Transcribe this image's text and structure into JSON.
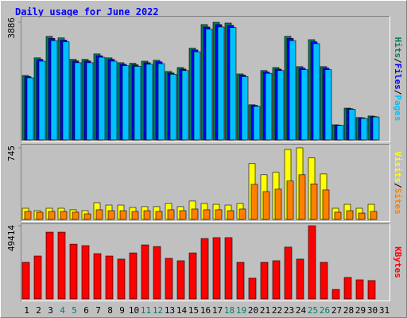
{
  "chart_data": [
    {
      "type": "bar",
      "title": "Daily usage for June 2022",
      "ylim": [
        0,
        3886
      ],
      "yticks": [
        3886
      ],
      "legend_separator": "/",
      "series": [
        {
          "name": "Hits",
          "color": "#00805c",
          "values": [
            2130,
            2710,
            3420,
            3370,
            2660,
            2660,
            2840,
            2710,
            2550,
            2530,
            2600,
            2630,
            2260,
            2390,
            3030,
            3810,
            3886,
            3860,
            2180,
            1160,
            2290,
            2390,
            3420,
            2420,
            3310,
            2420,
            500,
            1050,
            740,
            790,
            null
          ]
        },
        {
          "name": "Files",
          "color": "#0000ff",
          "values": [
            2090,
            2660,
            3350,
            3300,
            2610,
            2610,
            2780,
            2660,
            2500,
            2480,
            2550,
            2580,
            2210,
            2340,
            2970,
            3730,
            3810,
            3780,
            2140,
            1140,
            2240,
            2340,
            3350,
            2370,
            3240,
            2370,
            490,
            1030,
            730,
            770,
            null
          ]
        },
        {
          "name": "Pages",
          "color": "#00c0ff",
          "values": [
            2050,
            2600,
            3280,
            3240,
            2550,
            2550,
            2730,
            2600,
            2450,
            2430,
            2500,
            2520,
            2170,
            2290,
            2910,
            3660,
            3730,
            3710,
            2090,
            1110,
            2200,
            2290,
            3280,
            2320,
            3180,
            2320,
            480,
            1010,
            710,
            760,
            null
          ]
        }
      ]
    },
    {
      "type": "bar",
      "ylim": [
        0,
        745
      ],
      "yticks": [
        745
      ],
      "legend_separator": "/",
      "series": [
        {
          "name": "Visits",
          "color": "#ffff00",
          "values": [
            116,
            91,
            116,
            116,
            100,
            91,
            174,
            149,
            149,
            124,
            133,
            133,
            166,
            133,
            191,
            166,
            157,
            149,
            166,
            581,
            465,
            490,
            728,
            745,
            640,
            473,
            116,
            157,
            116,
            157,
            null
          ]
        },
        {
          "name": "Sites",
          "color": "#ff8000",
          "values": [
            83,
            75,
            83,
            83,
            75,
            58,
            100,
            91,
            91,
            83,
            91,
            83,
            100,
            91,
            108,
            100,
            100,
            91,
            108,
            365,
            290,
            315,
            400,
            465,
            370,
            307,
            75,
            91,
            66,
            83,
            null
          ]
        }
      ]
    },
    {
      "type": "bar",
      "ylim": [
        0,
        49414
      ],
      "yticks": [
        49414
      ],
      "series": [
        {
          "name": "KBytes",
          "color": "#ff0000",
          "values": [
            24700,
            29000,
            45100,
            45100,
            37000,
            36000,
            30600,
            29000,
            26900,
            31100,
            36500,
            35400,
            27400,
            25800,
            31100,
            40800,
            41400,
            41400,
            24700,
            14000,
            24700,
            25800,
            35000,
            26900,
            49414,
            24700,
            6400,
            14500,
            12900,
            12400,
            null
          ]
        }
      ],
      "categories": [
        "1",
        "2",
        "3",
        "4",
        "5",
        "6",
        "7",
        "8",
        "9",
        "10",
        "11",
        "12",
        "13",
        "14",
        "15",
        "16",
        "17",
        "18",
        "19",
        "20",
        "21",
        "22",
        "23",
        "24",
        "25",
        "26",
        "27",
        "28",
        "29",
        "30",
        "31"
      ],
      "label_colors": [
        "#000000",
        "#000000",
        "#000000",
        "#00805c",
        "#00805c",
        "#000000",
        "#000000",
        "#000000",
        "#000000",
        "#000000",
        "#00805c",
        "#00805c",
        "#000000",
        "#000000",
        "#000000",
        "#000000",
        "#000000",
        "#00805c",
        "#00805c",
        "#000000",
        "#000000",
        "#000000",
        "#000000",
        "#000000",
        "#00805c",
        "#00805c",
        "#000000",
        "#000000",
        "#000000",
        "#000000",
        "#000000"
      ]
    }
  ]
}
